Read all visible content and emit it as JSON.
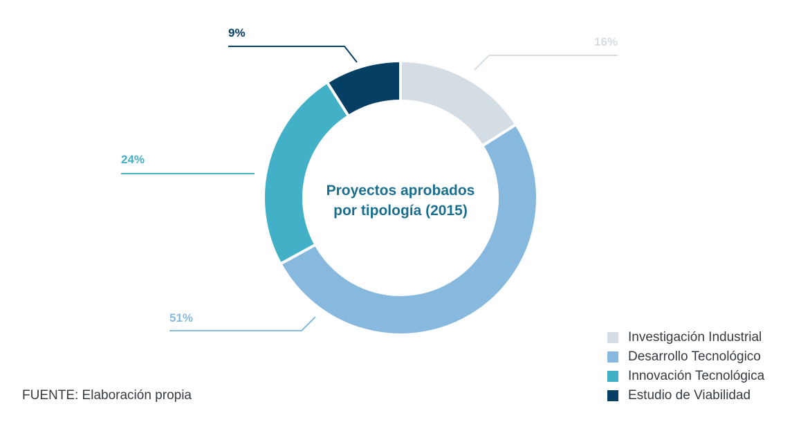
{
  "chart_data": {
    "type": "pie",
    "style": "donut",
    "title": "Proyectos aprobados por tipología (2015)",
    "title_lines": [
      "Proyectos aprobados",
      "por tipología (2015)"
    ],
    "slices": [
      {
        "name": "Investigación Industrial",
        "value": 16,
        "label": "16%",
        "color": "#d3dde3"
      },
      {
        "name": "Desarrollo Tecnológico",
        "value": 51,
        "label": "51%",
        "color": "#87b9df"
      },
      {
        "name": "Innovación Tecnológica",
        "value": 24,
        "label": "24%",
        "color": "#42b0c7"
      },
      {
        "name": "Estudio de Viabilidad",
        "value": 9,
        "label": "9%",
        "color": "#053f63"
      }
    ],
    "legend_position": "bottom-right"
  },
  "source": "FUENTE: Elaboración propia"
}
